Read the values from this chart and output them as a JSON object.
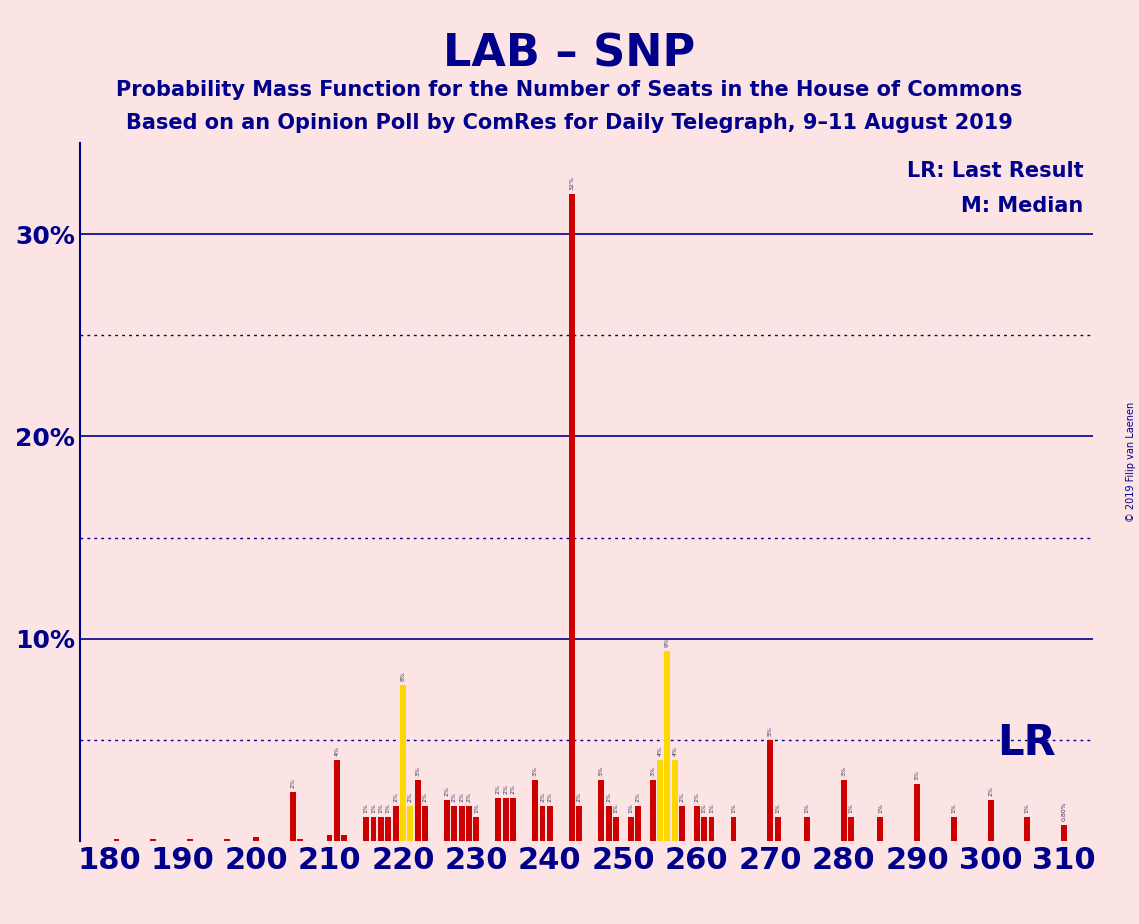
{
  "title": "LAB – SNP",
  "subtitle1": "Probability Mass Function for the Number of Seats in the House of Commons",
  "subtitle2": "Based on an Opinion Poll by ComRes for Daily Telegraph, 9–11 August 2019",
  "copyright": "© 2019 Filip van Laenen",
  "background_color": "#fce4e4",
  "title_color": "#00008B",
  "xmin": 176,
  "xmax": 314,
  "ymin": 0,
  "ymax": 0.345,
  "solid_hlines": [
    0.1,
    0.2,
    0.3
  ],
  "dotted_hlines": [
    0.05,
    0.15,
    0.25
  ],
  "xticks": [
    180,
    190,
    200,
    210,
    220,
    230,
    240,
    250,
    260,
    270,
    280,
    290,
    300,
    310
  ],
  "lr_seat": 243,
  "median_seat": 243,
  "legend_lr": "LR: Last Result",
  "legend_m": "M: Median",
  "legend_lr_short": "LR",
  "bars": [
    {
      "seat": 181,
      "prob": 0.001,
      "color": "#CC0000"
    },
    {
      "seat": 186,
      "prob": 0.001,
      "color": "#CC0000"
    },
    {
      "seat": 191,
      "prob": 0.001,
      "color": "#CC0000"
    },
    {
      "seat": 196,
      "prob": 0.001,
      "color": "#CC0000"
    },
    {
      "seat": 200,
      "prob": 0.002,
      "color": "#CC0000"
    },
    {
      "seat": 205,
      "prob": 0.024,
      "color": "#CC0000"
    },
    {
      "seat": 206,
      "prob": 0.001,
      "color": "#CC0000"
    },
    {
      "seat": 210,
      "prob": 0.003,
      "color": "#CC0000"
    },
    {
      "seat": 211,
      "prob": 0.04,
      "color": "#CC0000"
    },
    {
      "seat": 212,
      "prob": 0.003,
      "color": "#CC0000"
    },
    {
      "seat": 215,
      "prob": 0.012,
      "color": "#CC0000"
    },
    {
      "seat": 216,
      "prob": 0.012,
      "color": "#CC0000"
    },
    {
      "seat": 217,
      "prob": 0.012,
      "color": "#CC0000"
    },
    {
      "seat": 218,
      "prob": 0.012,
      "color": "#CC0000"
    },
    {
      "seat": 219,
      "prob": 0.017,
      "color": "#CC0000"
    },
    {
      "seat": 220,
      "prob": 0.077,
      "color": "#FFD700"
    },
    {
      "seat": 221,
      "prob": 0.017,
      "color": "#FFD700"
    },
    {
      "seat": 222,
      "prob": 0.03,
      "color": "#CC0000"
    },
    {
      "seat": 223,
      "prob": 0.017,
      "color": "#CC0000"
    },
    {
      "seat": 226,
      "prob": 0.02,
      "color": "#CC0000"
    },
    {
      "seat": 227,
      "prob": 0.017,
      "color": "#CC0000"
    },
    {
      "seat": 228,
      "prob": 0.017,
      "color": "#CC0000"
    },
    {
      "seat": 229,
      "prob": 0.017,
      "color": "#CC0000"
    },
    {
      "seat": 230,
      "prob": 0.012,
      "color": "#CC0000"
    },
    {
      "seat": 233,
      "prob": 0.021,
      "color": "#CC0000"
    },
    {
      "seat": 234,
      "prob": 0.021,
      "color": "#CC0000"
    },
    {
      "seat": 235,
      "prob": 0.021,
      "color": "#CC0000"
    },
    {
      "seat": 238,
      "prob": 0.03,
      "color": "#CC0000"
    },
    {
      "seat": 239,
      "prob": 0.017,
      "color": "#CC0000"
    },
    {
      "seat": 240,
      "prob": 0.017,
      "color": "#CC0000"
    },
    {
      "seat": 243,
      "prob": 0.32,
      "color": "#CC0000"
    },
    {
      "seat": 244,
      "prob": 0.017,
      "color": "#CC0000"
    },
    {
      "seat": 247,
      "prob": 0.03,
      "color": "#CC0000"
    },
    {
      "seat": 248,
      "prob": 0.017,
      "color": "#CC0000"
    },
    {
      "seat": 249,
      "prob": 0.012,
      "color": "#CC0000"
    },
    {
      "seat": 251,
      "prob": 0.012,
      "color": "#CC0000"
    },
    {
      "seat": 252,
      "prob": 0.017,
      "color": "#CC0000"
    },
    {
      "seat": 254,
      "prob": 0.03,
      "color": "#CC0000"
    },
    {
      "seat": 255,
      "prob": 0.04,
      "color": "#FFD700"
    },
    {
      "seat": 256,
      "prob": 0.094,
      "color": "#FFD700"
    },
    {
      "seat": 257,
      "prob": 0.04,
      "color": "#FFD700"
    },
    {
      "seat": 258,
      "prob": 0.017,
      "color": "#CC0000"
    },
    {
      "seat": 260,
      "prob": 0.017,
      "color": "#CC0000"
    },
    {
      "seat": 261,
      "prob": 0.012,
      "color": "#CC0000"
    },
    {
      "seat": 262,
      "prob": 0.012,
      "color": "#CC0000"
    },
    {
      "seat": 265,
      "prob": 0.012,
      "color": "#CC0000"
    },
    {
      "seat": 270,
      "prob": 0.05,
      "color": "#CC0000"
    },
    {
      "seat": 271,
      "prob": 0.012,
      "color": "#CC0000"
    },
    {
      "seat": 275,
      "prob": 0.012,
      "color": "#CC0000"
    },
    {
      "seat": 280,
      "prob": 0.03,
      "color": "#CC0000"
    },
    {
      "seat": 281,
      "prob": 0.012,
      "color": "#CC0000"
    },
    {
      "seat": 285,
      "prob": 0.012,
      "color": "#CC0000"
    },
    {
      "seat": 290,
      "prob": 0.028,
      "color": "#CC0000"
    },
    {
      "seat": 295,
      "prob": 0.012,
      "color": "#CC0000"
    },
    {
      "seat": 300,
      "prob": 0.02,
      "color": "#CC0000"
    },
    {
      "seat": 305,
      "prob": 0.012,
      "color": "#CC0000"
    },
    {
      "seat": 310,
      "prob": 0.008,
      "color": "#CC0000"
    }
  ]
}
